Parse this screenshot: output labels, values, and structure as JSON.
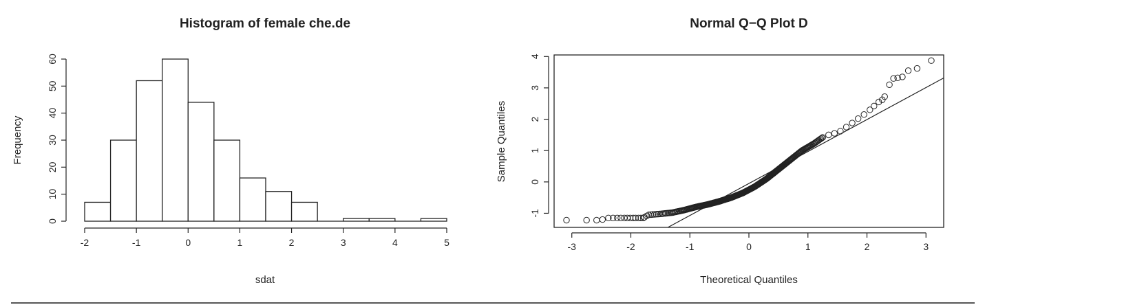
{
  "chart_data": [
    {
      "type": "bar",
      "title": "Histogram of female che.de",
      "xlabel": "sdat",
      "ylabel": "Frequency",
      "bin_edges": [
        -2,
        -1.5,
        -1,
        -0.5,
        0,
        0.5,
        1,
        1.5,
        2,
        2.5,
        3,
        3.5,
        4,
        4.5,
        5
      ],
      "values": [
        7,
        30,
        52,
        60,
        44,
        30,
        16,
        11,
        7,
        0,
        1,
        1,
        0,
        1
      ],
      "xlim": [
        -2,
        5
      ],
      "ylim": [
        0,
        60
      ],
      "xticks": [
        "-2",
        "-1",
        "0",
        "1",
        "2",
        "3",
        "4",
        "5"
      ],
      "yticks": [
        "0",
        "10",
        "20",
        "30",
        "40",
        "50",
        "60"
      ],
      "grid": false
    },
    {
      "type": "scatter",
      "title": "Normal Q−Q Plot D",
      "xlabel": "Theoretical Quantiles",
      "ylabel": "Sample Quantiles",
      "xlim": [
        -3.3,
        3.3
      ],
      "ylim": [
        -1.45,
        4.05
      ],
      "xticks": [
        "-3",
        "-2",
        "-1",
        "0",
        "1",
        "2",
        "3"
      ],
      "yticks": [
        "-1",
        "0",
        "1",
        "2",
        "3",
        "4"
      ],
      "reference_line": {
        "intercept": -0.05,
        "slope": 1.02
      },
      "lower_tail_points": [
        [
          -3.09,
          -1.22
        ],
        [
          -2.75,
          -1.22
        ],
        [
          -2.58,
          -1.22
        ],
        [
          -2.48,
          -1.2
        ],
        [
          -2.38,
          -1.15
        ],
        [
          -2.3,
          -1.15
        ],
        [
          -2.23,
          -1.15
        ],
        [
          -2.17,
          -1.15
        ],
        [
          -2.11,
          -1.15
        ],
        [
          -2.06,
          -1.15
        ],
        [
          -2.01,
          -1.15
        ],
        [
          -1.96,
          -1.15
        ],
        [
          -1.92,
          -1.15
        ],
        [
          -1.87,
          -1.15
        ],
        [
          -1.83,
          -1.15
        ],
        [
          -1.79,
          -1.15
        ]
      ],
      "upper_tail_points": [
        [
          1.25,
          1.42
        ],
        [
          1.35,
          1.5
        ],
        [
          1.45,
          1.55
        ],
        [
          1.55,
          1.62
        ],
        [
          1.65,
          1.75
        ],
        [
          1.75,
          1.88
        ],
        [
          1.85,
          2.02
        ],
        [
          1.95,
          2.15
        ],
        [
          2.05,
          2.3
        ],
        [
          2.12,
          2.42
        ],
        [
          2.2,
          2.55
        ],
        [
          2.26,
          2.62
        ],
        [
          2.3,
          2.72
        ],
        [
          2.38,
          3.1
        ],
        [
          2.45,
          3.3
        ],
        [
          2.52,
          3.32
        ],
        [
          2.6,
          3.35
        ],
        [
          2.7,
          3.55
        ],
        [
          2.85,
          3.62
        ],
        [
          3.09,
          3.87
        ]
      ],
      "grid": false
    }
  ]
}
